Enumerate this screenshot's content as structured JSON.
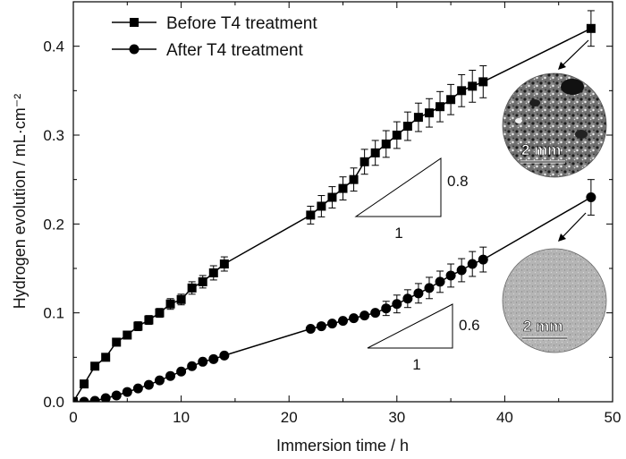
{
  "chart_data": {
    "type": "line",
    "xlabel": "Immersion time / h",
    "ylabel": "Hydrogen evolution / mL·cm⁻²",
    "xlim": [
      0,
      50
    ],
    "ylim": [
      0.0,
      0.45
    ],
    "xticks": [
      "0",
      "10",
      "20",
      "30",
      "40",
      "50"
    ],
    "yticks": [
      "0.0",
      "0.1",
      "0.2",
      "0.3",
      "0.4"
    ],
    "grid": false,
    "legend_position": "top-left",
    "series": [
      {
        "name": "Before T4 treatment",
        "marker": "square",
        "x": [
          0,
          1,
          2,
          3,
          4,
          5,
          6,
          7,
          8,
          9,
          10,
          11,
          12,
          13,
          14,
          22,
          23,
          24,
          25,
          26,
          27,
          28,
          29,
          30,
          31,
          32,
          33,
          34,
          35,
          36,
          37,
          38,
          48
        ],
        "y": [
          0.0,
          0.02,
          0.04,
          0.05,
          0.067,
          0.075,
          0.085,
          0.092,
          0.1,
          0.11,
          0.115,
          0.128,
          0.135,
          0.145,
          0.155,
          0.21,
          0.22,
          0.23,
          0.24,
          0.25,
          0.27,
          0.28,
          0.29,
          0.3,
          0.31,
          0.32,
          0.325,
          0.332,
          0.34,
          0.35,
          0.355,
          0.36,
          0.42
        ],
        "err": [
          0,
          0,
          0,
          0,
          0.004,
          0.004,
          0.005,
          0.005,
          0.005,
          0.006,
          0.006,
          0.007,
          0.007,
          0.008,
          0.008,
          0.01,
          0.012,
          0.012,
          0.013,
          0.013,
          0.014,
          0.014,
          0.015,
          0.015,
          0.016,
          0.016,
          0.016,
          0.017,
          0.017,
          0.018,
          0.018,
          0.018,
          0.02
        ]
      },
      {
        "name": "After T4 treatment",
        "marker": "circle",
        "x": [
          0,
          1,
          2,
          3,
          4,
          5,
          6,
          7,
          8,
          9,
          10,
          11,
          12,
          13,
          14,
          22,
          23,
          24,
          25,
          26,
          27,
          28,
          29,
          30,
          31,
          32,
          33,
          34,
          35,
          36,
          37,
          38,
          48
        ],
        "y": [
          0.0,
          0.0,
          0.001,
          0.004,
          0.007,
          0.011,
          0.015,
          0.019,
          0.024,
          0.029,
          0.034,
          0.04,
          0.045,
          0.048,
          0.052,
          0.082,
          0.085,
          0.088,
          0.091,
          0.094,
          0.097,
          0.1,
          0.105,
          0.11,
          0.116,
          0.122,
          0.128,
          0.135,
          0.142,
          0.148,
          0.155,
          0.16,
          0.23
        ],
        "err": [
          0,
          0,
          0,
          0,
          0,
          0,
          0,
          0,
          0,
          0,
          0,
          0,
          0,
          0,
          0,
          0,
          0,
          0,
          0,
          0,
          0,
          0,
          0.008,
          0.01,
          0.01,
          0.011,
          0.012,
          0.012,
          0.013,
          0.013,
          0.014,
          0.014,
          0.02
        ]
      }
    ],
    "annotations": {
      "slope_upper": {
        "rise": "0.8",
        "run": "1"
      },
      "slope_lower": {
        "rise": "0.6",
        "run": "1"
      },
      "micrograph_scale_upper": "2 mm",
      "micrograph_scale_lower": "2 mm"
    }
  }
}
